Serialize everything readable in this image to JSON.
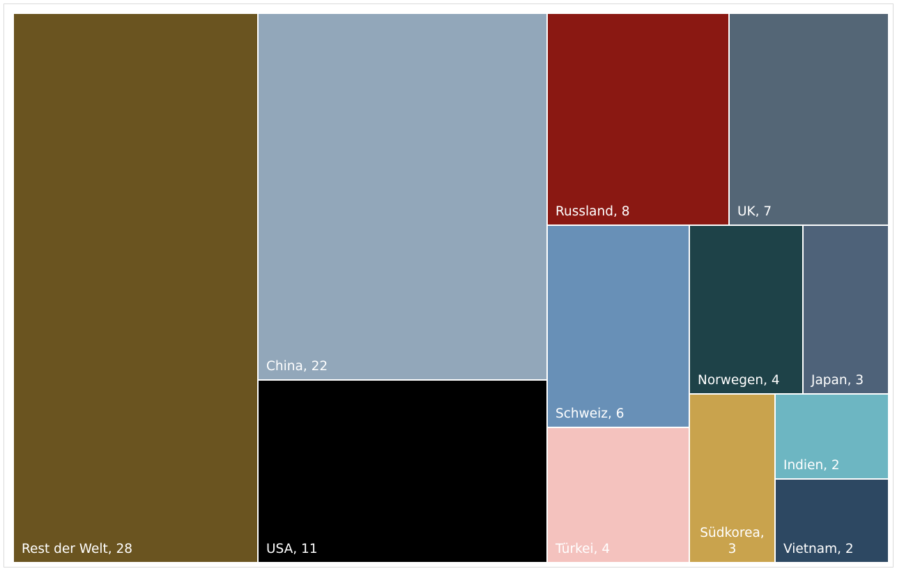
{
  "chart_data": {
    "type": "treemap",
    "items": [
      {
        "label": "Rest der Welt, 28",
        "name": "Rest der Welt",
        "value": 28,
        "color": "#6a5420"
      },
      {
        "label": "China, 22",
        "name": "China",
        "value": 22,
        "color": "#92a7ba"
      },
      {
        "label": "USA, 11",
        "name": "USA",
        "value": 11,
        "color": "#000000"
      },
      {
        "label": "Russland, 8",
        "name": "Russland",
        "value": 8,
        "color": "#8a1812"
      },
      {
        "label": "UK, 7",
        "name": "UK",
        "value": 7,
        "color": "#546676"
      },
      {
        "label": "Schweiz, 6",
        "name": "Schweiz",
        "value": 6,
        "color": "#6890b7"
      },
      {
        "label": "Norwegen, 4",
        "name": "Norwegen",
        "value": 4,
        "color": "#1e4248"
      },
      {
        "label": "Japan, 3",
        "name": "Japan",
        "value": 3,
        "color": "#4e6279"
      },
      {
        "label": "Türkei, 4",
        "name": "Türkei",
        "value": 4,
        "color": "#f4c2be"
      },
      {
        "label": "Südkorea,\n3",
        "name": "Südkorea",
        "value": 3,
        "color": "#c9a34d"
      },
      {
        "label": "Indien, 2",
        "name": "Indien",
        "value": 2,
        "color": "#6db6c2"
      },
      {
        "label": "Vietnam, 2",
        "name": "Vietnam",
        "value": 2,
        "color": "#2d4862"
      }
    ]
  }
}
